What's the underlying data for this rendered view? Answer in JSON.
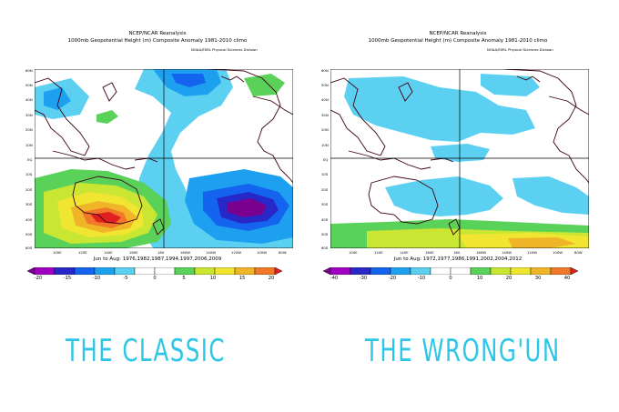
{
  "left": {
    "title1": "NCEP/NCAR Reanalysis",
    "title2": "1000mb Geopotential Height (m) Composite Anomaly 1981-2010 climo",
    "credit": "NOAA/ESRL Physical Sciences Division",
    "dates": "Jun to Aug: 1976,1982,1987,1994,1997,2006,2009",
    "colorbar_ticks": [
      "-20",
      "-15",
      "-10",
      "-5",
      "0",
      "5",
      "10",
      "15",
      "20"
    ],
    "headline": "THE CLASSIC"
  },
  "right": {
    "title1": "NCEP/NCAR Reanalysis",
    "title2": "1000mb Geopotential Height (m) Composite Anomaly 1981-2010 climo",
    "credit": "NOAA/ESRL Physical Sciences Division",
    "dates": "Jun to Aug: 1972,1977,1986,1991,2002,2004,2012",
    "colorbar_ticks": [
      "-40",
      "-30",
      "-20",
      "-10",
      "0",
      "10",
      "20",
      "30",
      "40"
    ],
    "headline": "THE WRONG'UN"
  },
  "lat_labels": [
    "60N",
    "50N",
    "40N",
    "30N",
    "20N",
    "10N",
    "EQ",
    "10S",
    "20S",
    "30S",
    "40S",
    "50S",
    "60S"
  ],
  "lon_labels": [
    "100E",
    "120E",
    "140E",
    "160E",
    "180",
    "160W",
    "140W",
    "120W",
    "100W",
    "80W"
  ],
  "colors": {
    "headline": "#2ec6e6",
    "colorbar": [
      "#7a0090",
      "#a000c0",
      "#2828c8",
      "#1464f0",
      "#1ea0f0",
      "#5cd0f0",
      "#ffffff",
      "#ffffff",
      "#5ad25a",
      "#c8e632",
      "#f0e632",
      "#f0b428",
      "#f07828",
      "#e02020"
    ]
  }
}
